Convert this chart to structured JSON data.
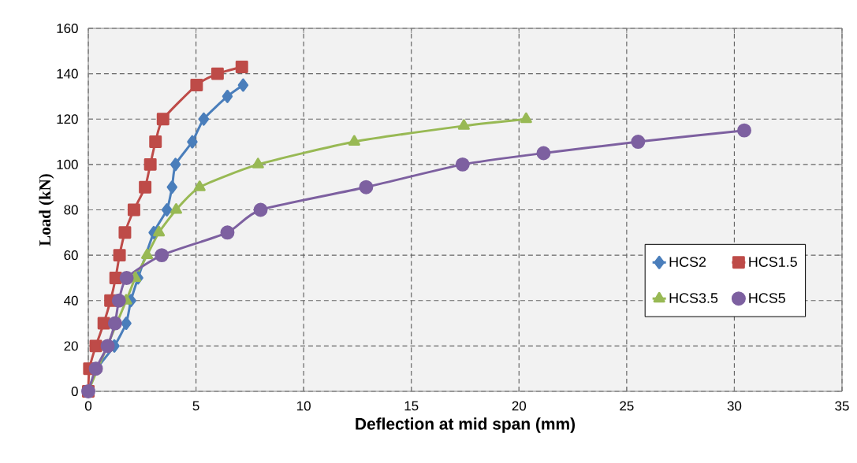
{
  "chart_data": {
    "type": "line",
    "xlabel": "Deflection at mid span (mm)",
    "ylabel": "Load  (kN)",
    "xlim": [
      0,
      35
    ],
    "ylim": [
      0,
      160
    ],
    "xticks": [
      0,
      5,
      10,
      15,
      20,
      25,
      30,
      35
    ],
    "yticks": [
      0,
      20,
      40,
      60,
      80,
      100,
      120,
      140,
      160
    ],
    "grid": true,
    "legend": "bottom right",
    "line_style": "solid",
    "series": [
      {
        "name": "HCS2",
        "color": "#4a7ebb",
        "marker": "diamond",
        "x": [
          0,
          0.4,
          1.21,
          1.76,
          1.98,
          2.31,
          2.8,
          3.04,
          3.65,
          3.89,
          4.05,
          4.83,
          5.36,
          6.46,
          7.19
        ],
        "values": [
          0,
          10,
          20,
          30,
          40,
          50,
          null,
          70,
          80,
          90,
          100,
          110,
          120,
          130,
          135
        ]
      },
      {
        "name": "HCS1.5",
        "color": "#be4b48",
        "marker": "square",
        "x": [
          0,
          0.05,
          0.35,
          0.72,
          1.03,
          1.27,
          1.45,
          1.7,
          2.12,
          2.64,
          2.88,
          3.12,
          3.47,
          5.03,
          6.0,
          7.13
        ],
        "values": [
          0,
          10,
          20,
          30,
          40,
          50,
          60,
          70,
          80,
          90,
          100,
          110,
          120,
          135,
          140,
          143
        ]
      },
      {
        "name": "HCS3.5",
        "color": "#98b954",
        "marker": "triangle",
        "x": [
          0,
          0.4,
          1.0,
          1.39,
          1.76,
          2.18,
          2.73,
          3.28,
          4.08,
          5.17,
          7.88,
          12.35,
          17.44,
          20.33
        ],
        "values": [
          0,
          null,
          null,
          null,
          40,
          50,
          60,
          70,
          80,
          90,
          100,
          110,
          117,
          120
        ]
      },
      {
        "name": "HCS5",
        "color": "#7d60a0",
        "marker": "circle",
        "x": [
          0,
          0.35,
          0.9,
          1.24,
          1.42,
          1.78,
          3.41,
          6.46,
          8.0,
          12.9,
          17.38,
          21.14,
          25.53,
          30.46
        ],
        "values": [
          0,
          10,
          20,
          30,
          40,
          50,
          60,
          70,
          80,
          90,
          100,
          105,
          110,
          115
        ]
      }
    ]
  }
}
